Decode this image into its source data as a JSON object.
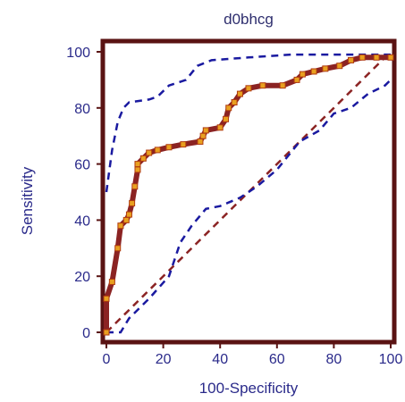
{
  "chart_data": {
    "type": "line",
    "title": "d0bhcg",
    "xlabel": "100-Specificity",
    "ylabel": "Sensitivity",
    "xlim": [
      0,
      100
    ],
    "ylim": [
      0,
      100
    ],
    "xticks": [
      0,
      20,
      40,
      60,
      80,
      100
    ],
    "yticks": [
      0,
      20,
      40,
      60,
      80,
      100
    ],
    "grid": false,
    "series": [
      {
        "role": "roc-curve",
        "color": "#8b2323",
        "marker_color": "#e8a020",
        "points": [
          [
            0,
            0
          ],
          [
            0,
            12
          ],
          [
            2,
            18
          ],
          [
            4,
            30
          ],
          [
            5,
            38
          ],
          [
            7,
            40
          ],
          [
            8,
            42
          ],
          [
            9,
            46
          ],
          [
            10,
            52
          ],
          [
            11,
            58
          ],
          [
            11,
            60
          ],
          [
            13,
            62
          ],
          [
            15,
            64
          ],
          [
            18,
            65
          ],
          [
            22,
            66
          ],
          [
            27,
            67
          ],
          [
            33,
            68
          ],
          [
            34,
            70
          ],
          [
            35,
            72
          ],
          [
            40,
            73
          ],
          [
            42,
            76
          ],
          [
            43,
            80
          ],
          [
            45,
            82
          ],
          [
            47,
            85
          ],
          [
            50,
            87
          ],
          [
            55,
            88
          ],
          [
            62,
            88
          ],
          [
            67,
            90
          ],
          [
            69,
            92
          ],
          [
            73,
            93
          ],
          [
            77,
            94
          ],
          [
            82,
            95
          ],
          [
            86,
            97
          ],
          [
            90,
            98
          ],
          [
            95,
            98
          ],
          [
            100,
            98
          ]
        ]
      },
      {
        "role": "upper-confidence-bound",
        "color": "#1a1aa0",
        "dashed": true,
        "points": [
          [
            0,
            50
          ],
          [
            2,
            65
          ],
          [
            4,
            75
          ],
          [
            6,
            80
          ],
          [
            8,
            82
          ],
          [
            15,
            83
          ],
          [
            18,
            84
          ],
          [
            22,
            88
          ],
          [
            28,
            90
          ],
          [
            32,
            95
          ],
          [
            37,
            97
          ],
          [
            50,
            98
          ],
          [
            65,
            99
          ],
          [
            85,
            99
          ],
          [
            100,
            99
          ]
        ]
      },
      {
        "role": "lower-confidence-bound",
        "color": "#1a1aa0",
        "dashed": true,
        "points": [
          [
            0,
            0
          ],
          [
            5,
            0
          ],
          [
            8,
            5
          ],
          [
            15,
            12
          ],
          [
            22,
            20
          ],
          [
            26,
            32
          ],
          [
            30,
            38
          ],
          [
            35,
            44
          ],
          [
            40,
            45
          ],
          [
            47,
            48
          ],
          [
            53,
            52
          ],
          [
            60,
            58
          ],
          [
            68,
            68
          ],
          [
            75,
            72
          ],
          [
            80,
            78
          ],
          [
            86,
            80
          ],
          [
            92,
            85
          ],
          [
            98,
            88
          ],
          [
            100,
            90
          ]
        ]
      },
      {
        "role": "reference-diagonal",
        "color": "#8b2323",
        "dashed": true,
        "points": [
          [
            0,
            0
          ],
          [
            100,
            100
          ]
        ]
      }
    ]
  }
}
